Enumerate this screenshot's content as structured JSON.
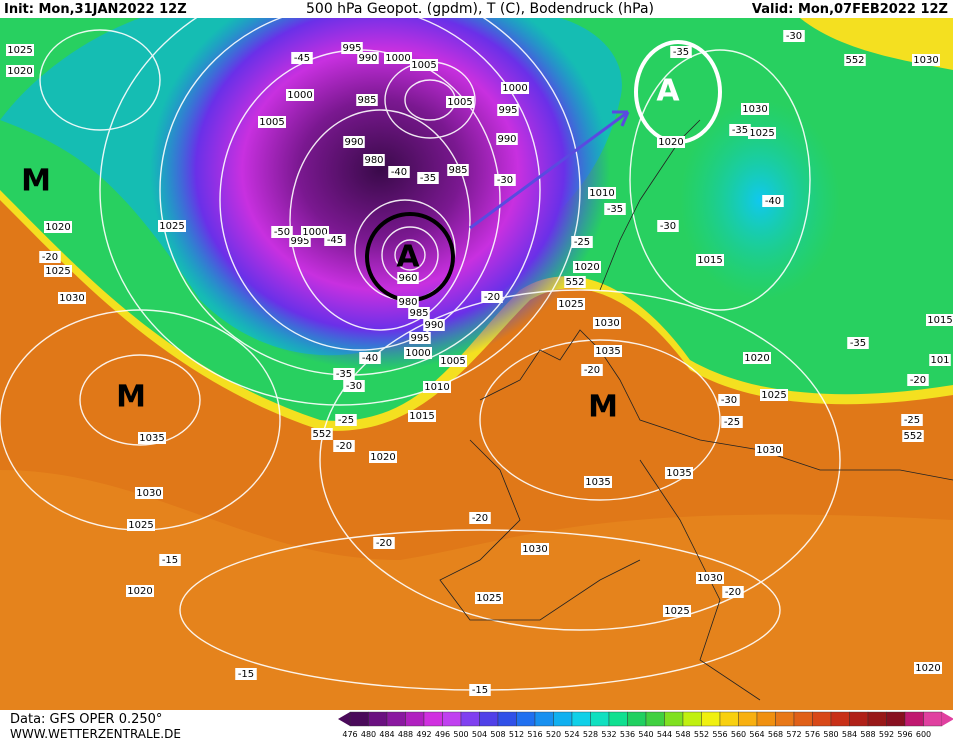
{
  "header": {
    "init": "Init: Mon,31JAN2022 12Z",
    "title": "500 hPa Geopot. (gpdm), T (C), Bodendruck (hPa)",
    "valid": "Valid: Mon,07FEB2022 12Z"
  },
  "symbols": [
    "M",
    "M",
    "M",
    "A",
    "A"
  ],
  "labels": [
    "1025",
    "1020",
    "995",
    "990",
    "1000",
    "1005",
    "1000",
    "1005",
    "995",
    "990",
    "985",
    "-30",
    "1000",
    "1005",
    "985",
    "990",
    "980",
    "-40",
    "-35",
    "-45",
    "1025",
    "1020",
    "-20",
    "1025",
    "1030",
    "-50",
    "995",
    "1000",
    "-45",
    "960",
    "980",
    "985",
    "990",
    "995",
    "1000",
    "1005",
    "-40",
    "-35",
    "-30",
    "1010",
    "1015",
    "-25",
    "-20",
    "552",
    "1035",
    "1020",
    "1030",
    "1025",
    "-15",
    "1020",
    "-20",
    "-20",
    "1030",
    "1025",
    "1030",
    "-20",
    "1025",
    "-15",
    "-15",
    "1020",
    "1035",
    "1035",
    "1030",
    "1025",
    "1020",
    "-30",
    "-25",
    "-20",
    "-25",
    "552",
    "-35",
    "1015",
    "-30",
    "-35",
    "1010",
    "-25",
    "1020",
    "552",
    "1025",
    "1030",
    "1035",
    "-20",
    "-40",
    "1025",
    "1030",
    "-35",
    "-35",
    "1020",
    "-30",
    "552",
    "1030",
    "-20",
    "1015",
    "101"
  ],
  "colorbar": {
    "ticks": [
      476,
      480,
      484,
      488,
      492,
      496,
      500,
      504,
      508,
      512,
      516,
      520,
      524,
      528,
      532,
      536,
      540,
      544,
      548,
      552,
      556,
      560,
      564,
      568,
      572,
      576,
      580,
      584,
      588,
      592,
      596,
      600
    ]
  },
  "footer": {
    "source": "Data: GFS OPER 0.250°",
    "site": "WWW.WETTERZENTRALE.DE"
  }
}
